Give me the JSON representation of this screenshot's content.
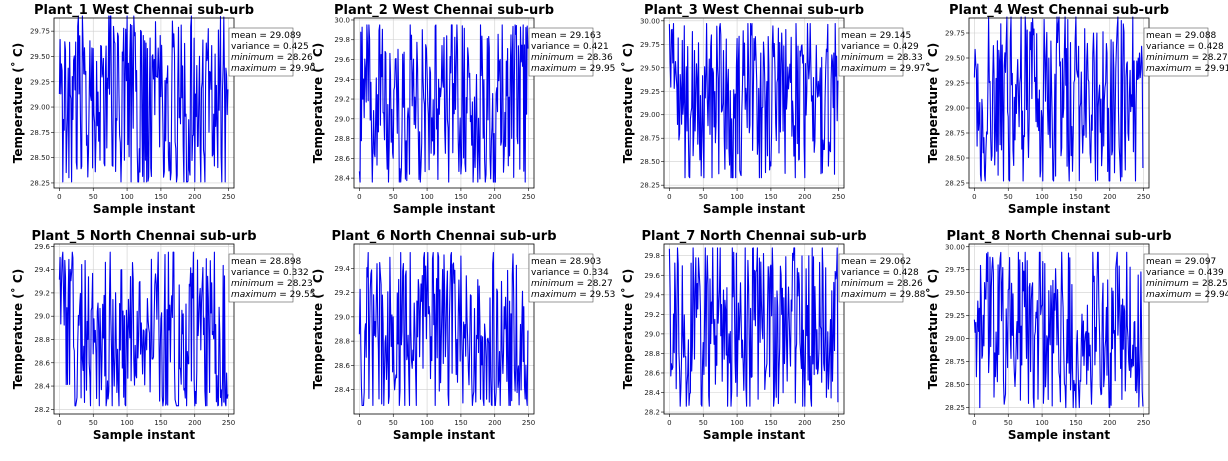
{
  "chart_data": [
    {
      "type": "line",
      "title": "Plant_1  West Chennai sub-urb",
      "xlabel": "Sample instant",
      "ylabel": "Temperature (˚ C)",
      "xlim": [
        -8,
        258
      ],
      "xticks": [
        0,
        50,
        100,
        150,
        200,
        250
      ],
      "ylim": [
        28.2,
        29.88
      ],
      "yticks": [
        "28.25",
        "28.50",
        "28.75",
        "29.00",
        "29.25",
        "29.50",
        "29.75"
      ],
      "grid": true,
      "series": [
        {
          "color": "#0000ee",
          "n": 250,
          "seed": 11,
          "mean": 29.089,
          "variance": 0.425,
          "minimum": 28.26,
          "maximum": 29.9
        }
      ],
      "stats": [
        {
          "label": "mean",
          "value": "29.089"
        },
        {
          "label": "variance",
          "value": "0.425"
        },
        {
          "label": "minimum",
          "value": "28.26"
        },
        {
          "label": "maximum",
          "value": "29.90"
        }
      ]
    },
    {
      "type": "line",
      "title": "Plant_2  West Chennai sub-urb",
      "xlabel": "Sample instant",
      "ylabel": "Temperature (˚ C)",
      "xlim": [
        -8,
        258
      ],
      "xticks": [
        0,
        50,
        100,
        150,
        200,
        250
      ],
      "ylim": [
        28.3,
        30.02
      ],
      "yticks": [
        "28.4",
        "28.6",
        "28.8",
        "29.0",
        "29.2",
        "29.4",
        "29.6",
        "29.8",
        "30.0"
      ],
      "grid": true,
      "series": [
        {
          "color": "#0000ee",
          "n": 250,
          "seed": 23,
          "mean": 29.163,
          "variance": 0.421,
          "minimum": 28.36,
          "maximum": 29.95
        }
      ],
      "stats": [
        {
          "label": "mean",
          "value": "29.163"
        },
        {
          "label": "variance",
          "value": "0.421"
        },
        {
          "label": "minimum",
          "value": "28.36"
        },
        {
          "label": "maximum",
          "value": "29.95"
        }
      ]
    },
    {
      "type": "line",
      "title": "Plant_3  West Chennai sub-urb",
      "xlabel": "Sample instant",
      "ylabel": "Temperature (˚ C)",
      "xlim": [
        -8,
        258
      ],
      "xticks": [
        0,
        50,
        100,
        150,
        200,
        250
      ],
      "ylim": [
        28.22,
        30.03
      ],
      "yticks": [
        "28.25",
        "28.50",
        "28.75",
        "29.00",
        "29.25",
        "29.50",
        "29.75",
        "30.00"
      ],
      "grid": true,
      "series": [
        {
          "color": "#0000ee",
          "n": 250,
          "seed": 37,
          "mean": 29.145,
          "variance": 0.429,
          "minimum": 28.33,
          "maximum": 29.97
        }
      ],
      "stats": [
        {
          "label": "mean",
          "value": "29.145"
        },
        {
          "label": "variance",
          "value": "0.429"
        },
        {
          "label": "minimum",
          "value": "28.33"
        },
        {
          "label": "maximum",
          "value": "29.97"
        }
      ]
    },
    {
      "type": "line",
      "title": "Plant_4  West Chennai sub-urb",
      "xlabel": "Sample instant",
      "ylabel": "Temperature (˚ C)",
      "xlim": [
        -8,
        258
      ],
      "xticks": [
        0,
        50,
        100,
        150,
        200,
        250
      ],
      "ylim": [
        28.2,
        29.9
      ],
      "yticks": [
        "28.25",
        "28.50",
        "28.75",
        "29.00",
        "29.25",
        "29.50",
        "29.75"
      ],
      "grid": true,
      "series": [
        {
          "color": "#0000ee",
          "n": 250,
          "seed": 41,
          "mean": 29.088,
          "variance": 0.428,
          "minimum": 28.27,
          "maximum": 29.91
        }
      ],
      "stats": [
        {
          "label": "mean",
          "value": "29.088"
        },
        {
          "label": "variance",
          "value": "0.428"
        },
        {
          "label": "minimum",
          "value": "28.27"
        },
        {
          "label": "maximum",
          "value": "29.91"
        }
      ]
    },
    {
      "type": "line",
      "title": "Plant_5  North Chennai sub-urb",
      "xlabel": "Sample instant",
      "ylabel": "Temperature (˚ C)",
      "xlim": [
        -8,
        258
      ],
      "xticks": [
        0,
        50,
        100,
        150,
        200,
        250
      ],
      "ylim": [
        28.16,
        29.62
      ],
      "yticks": [
        "28.2",
        "28.4",
        "28.6",
        "28.8",
        "29.0",
        "29.2",
        "29.4",
        "29.6"
      ],
      "grid": true,
      "series": [
        {
          "color": "#0000ee",
          "n": 250,
          "seed": 53,
          "mean": 28.898,
          "variance": 0.332,
          "minimum": 28.23,
          "maximum": 29.55
        }
      ],
      "stats": [
        {
          "label": "mean",
          "value": "28.898"
        },
        {
          "label": "variance",
          "value": "0.332"
        },
        {
          "label": "minimum",
          "value": "28.23"
        },
        {
          "label": "maximum",
          "value": "29.55"
        }
      ]
    },
    {
      "type": "line",
      "title": "Plant_6  North Chennai sub-urb",
      "xlabel": "Sample instant",
      "ylabel": "Temperature (˚ C)",
      "xlim": [
        -8,
        258
      ],
      "xticks": [
        0,
        50,
        100,
        150,
        200,
        250
      ],
      "ylim": [
        28.2,
        29.6
      ],
      "yticks": [
        "28.4",
        "28.6",
        "28.8",
        "29.0",
        "29.2",
        "29.4"
      ],
      "grid": true,
      "series": [
        {
          "color": "#0000ee",
          "n": 250,
          "seed": 67,
          "mean": 28.903,
          "variance": 0.334,
          "minimum": 28.27,
          "maximum": 29.53
        }
      ],
      "stats": [
        {
          "label": "mean",
          "value": "28.903"
        },
        {
          "label": "variance",
          "value": "0.334"
        },
        {
          "label": "minimum",
          "value": "28.27"
        },
        {
          "label": "maximum",
          "value": "29.53"
        }
      ]
    },
    {
      "type": "line",
      "title": "Plant_7  North Chennai sub-urb",
      "xlabel": "Sample instant",
      "ylabel": "Temperature (˚ C)",
      "xlim": [
        -8,
        258
      ],
      "xticks": [
        0,
        50,
        100,
        150,
        200,
        250
      ],
      "ylim": [
        28.18,
        29.92
      ],
      "yticks": [
        "28.2",
        "28.4",
        "28.6",
        "28.8",
        "29.0",
        "29.2",
        "29.4",
        "29.6",
        "29.8"
      ],
      "grid": true,
      "series": [
        {
          "color": "#0000ee",
          "n": 250,
          "seed": 79,
          "mean": 29.062,
          "variance": 0.428,
          "minimum": 28.26,
          "maximum": 29.88
        }
      ],
      "stats": [
        {
          "label": "mean",
          "value": "29.062"
        },
        {
          "label": "variance",
          "value": "0.428"
        },
        {
          "label": "minimum",
          "value": "28.26"
        },
        {
          "label": "maximum",
          "value": "29.88"
        }
      ]
    },
    {
      "type": "line",
      "title": "Plant_8  North Chennai sub-urb",
      "xlabel": "Sample instant",
      "ylabel": "Temperature (˚ C)",
      "xlim": [
        -8,
        258
      ],
      "xticks": [
        0,
        50,
        100,
        150,
        200,
        250
      ],
      "ylim": [
        28.18,
        30.03
      ],
      "yticks": [
        "28.25",
        "28.50",
        "28.75",
        "29.00",
        "29.25",
        "29.50",
        "29.75",
        "30.00"
      ],
      "grid": true,
      "series": [
        {
          "color": "#0000ee",
          "n": 250,
          "seed": 97,
          "mean": 29.097,
          "variance": 0.439,
          "minimum": 28.25,
          "maximum": 29.94
        }
      ],
      "stats": [
        {
          "label": "mean",
          "value": "29.097"
        },
        {
          "label": "variance",
          "value": "0.439"
        },
        {
          "label": "minimum",
          "value": "28.25"
        },
        {
          "label": "maximum",
          "value": "29.94"
        }
      ]
    }
  ]
}
